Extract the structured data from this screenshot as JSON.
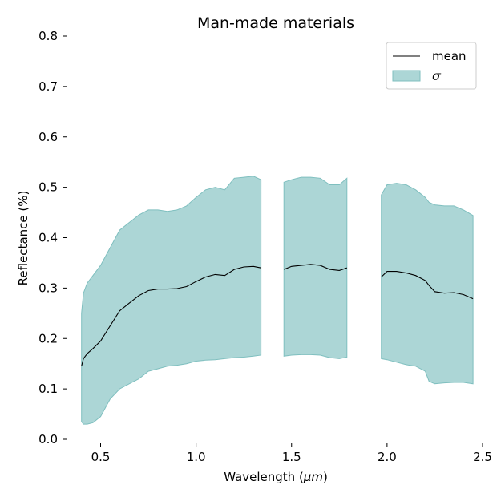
{
  "chart_data": {
    "type": "area",
    "title": "Man-made materials",
    "xlabel_text": "Wavelength (",
    "xlabel_unit": "μm",
    "xlabel_close": ")",
    "ylabel": "Reflectance (%)",
    "xlim": [
      0.33,
      2.5
    ],
    "ylim": [
      0.0,
      0.8
    ],
    "xticks": [
      {
        "value": 0.5,
        "label": "0.5"
      },
      {
        "value": 1.0,
        "label": "1.0"
      },
      {
        "value": 1.5,
        "label": "1.5"
      },
      {
        "value": 2.0,
        "label": "2.0"
      },
      {
        "value": 2.5,
        "label": "2.5"
      }
    ],
    "yticks": [
      {
        "value": 0.0,
        "label": "0.0"
      },
      {
        "value": 0.1,
        "label": "0.1"
      },
      {
        "value": 0.2,
        "label": "0.2"
      },
      {
        "value": 0.3,
        "label": "0.3"
      },
      {
        "value": 0.4,
        "label": "0.4"
      },
      {
        "value": 0.5,
        "label": "0.5"
      },
      {
        "value": 0.6,
        "label": "0.6"
      },
      {
        "value": 0.7,
        "label": "0.7"
      },
      {
        "value": 0.8,
        "label": "0.8"
      }
    ],
    "legend": {
      "position": "top-right",
      "mean_label": "mean",
      "sigma_label": "σ"
    },
    "colors": {
      "mean_line": "#000000",
      "band_fill": "#acd6d6",
      "band_edge": "#7fbfbf"
    },
    "grid": false,
    "segments": [
      {
        "x": [
          0.4,
          0.41,
          0.43,
          0.46,
          0.5,
          0.55,
          0.6,
          0.65,
          0.7,
          0.75,
          0.8,
          0.85,
          0.9,
          0.95,
          1.0,
          1.05,
          1.1,
          1.15,
          1.2,
          1.25,
          1.3,
          1.34
        ],
        "mean": [
          0.145,
          0.16,
          0.17,
          0.18,
          0.195,
          0.225,
          0.255,
          0.27,
          0.285,
          0.295,
          0.298,
          0.298,
          0.299,
          0.303,
          0.313,
          0.322,
          0.327,
          0.325,
          0.337,
          0.342,
          0.343,
          0.34
        ],
        "upper": [
          0.25,
          0.29,
          0.31,
          0.325,
          0.345,
          0.38,
          0.415,
          0.43,
          0.445,
          0.455,
          0.455,
          0.452,
          0.455,
          0.463,
          0.48,
          0.495,
          0.5,
          0.495,
          0.518,
          0.52,
          0.522,
          0.515
        ],
        "lower": [
          0.035,
          0.03,
          0.03,
          0.033,
          0.045,
          0.08,
          0.1,
          0.11,
          0.12,
          0.135,
          0.14,
          0.145,
          0.147,
          0.15,
          0.155,
          0.157,
          0.158,
          0.16,
          0.162,
          0.163,
          0.165,
          0.167
        ]
      },
      {
        "x": [
          1.46,
          1.5,
          1.55,
          1.6,
          1.65,
          1.7,
          1.75,
          1.79
        ],
        "mean": [
          0.337,
          0.343,
          0.345,
          0.347,
          0.345,
          0.337,
          0.335,
          0.34
        ],
        "upper": [
          0.51,
          0.515,
          0.52,
          0.52,
          0.518,
          0.505,
          0.505,
          0.518
        ],
        "lower": [
          0.165,
          0.167,
          0.168,
          0.168,
          0.167,
          0.162,
          0.16,
          0.163
        ]
      },
      {
        "x": [
          1.97,
          2.0,
          2.05,
          2.1,
          2.15,
          2.2,
          2.22,
          2.25,
          2.3,
          2.35,
          2.4,
          2.45
        ],
        "mean": [
          0.322,
          0.333,
          0.333,
          0.33,
          0.325,
          0.315,
          0.305,
          0.293,
          0.29,
          0.291,
          0.287,
          0.279
        ],
        "upper": [
          0.485,
          0.505,
          0.508,
          0.505,
          0.495,
          0.48,
          0.47,
          0.465,
          0.463,
          0.463,
          0.455,
          0.444
        ],
        "lower": [
          0.16,
          0.158,
          0.153,
          0.148,
          0.145,
          0.135,
          0.115,
          0.11,
          0.112,
          0.113,
          0.113,
          0.11
        ]
      }
    ]
  }
}
